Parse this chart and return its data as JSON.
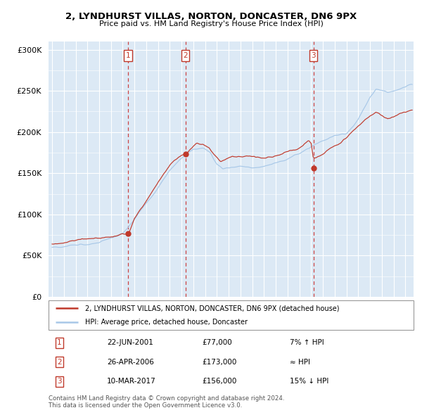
{
  "title1": "2, LYNDHURST VILLAS, NORTON, DONCASTER, DN6 9PX",
  "title2": "Price paid vs. HM Land Registry's House Price Index (HPI)",
  "legend_line1": "2, LYNDHURST VILLAS, NORTON, DONCASTER, DN6 9PX (detached house)",
  "legend_line2": "HPI: Average price, detached house, Doncaster",
  "sale1_date": "22-JUN-2001",
  "sale1_price": 77000,
  "sale1_hpi": "7% ↑ HPI",
  "sale2_date": "26-APR-2006",
  "sale2_price": 173000,
  "sale2_hpi": "≈ HPI",
  "sale3_date": "10-MAR-2017",
  "sale3_price": 156000,
  "sale3_hpi": "15% ↓ HPI",
  "footer1": "Contains HM Land Registry data © Crown copyright and database right 2024.",
  "footer2": "This data is licensed under the Open Government Licence v3.0.",
  "sale1_x": 2001.47,
  "sale2_x": 2006.32,
  "sale3_x": 2017.19,
  "hpi_color": "#a8c8e8",
  "property_color": "#c0392b",
  "plot_bg": "#dce9f5",
  "grid_color": "#ffffff",
  "dashed_color": "#cc4444",
  "ylim": [
    0,
    310000
  ],
  "xlim_start": 1994.7,
  "xlim_end": 2025.7
}
